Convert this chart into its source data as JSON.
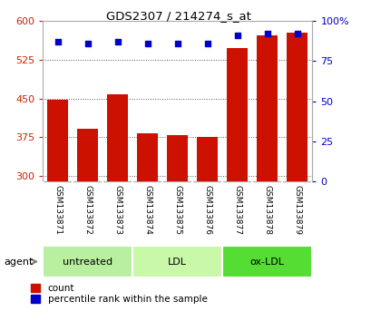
{
  "title": "GDS2307 / 214274_s_at",
  "samples": [
    "GSM133871",
    "GSM133872",
    "GSM133873",
    "GSM133874",
    "GSM133875",
    "GSM133876",
    "GSM133877",
    "GSM133878",
    "GSM133879"
  ],
  "counts": [
    447,
    392,
    458,
    383,
    380,
    375,
    548,
    572,
    578
  ],
  "percentiles": [
    87,
    86,
    87,
    86,
    86,
    86,
    91,
    92,
    92
  ],
  "groups": [
    {
      "label": "untreated",
      "start": 0,
      "end": 3,
      "color": "#b8f0a0"
    },
    {
      "label": "LDL",
      "start": 3,
      "end": 6,
      "color": "#c8f8a8"
    },
    {
      "label": "ox-LDL",
      "start": 6,
      "end": 9,
      "color": "#55dd33"
    }
  ],
  "ymin": 290,
  "ymax": 600,
  "yticks": [
    300,
    375,
    450,
    525,
    600
  ],
  "y2ticks": [
    0,
    25,
    50,
    75,
    100
  ],
  "bar_color": "#cc1100",
  "dot_color": "#0000cc",
  "bar_width": 0.7,
  "bg_color": "#ffffff",
  "plot_bg": "#ffffff",
  "label_area_color": "#cccccc",
  "grid_color": "#000000",
  "left_label_color": "#cc2200",
  "right_label_color": "#0000cc",
  "agent_label": "agent"
}
